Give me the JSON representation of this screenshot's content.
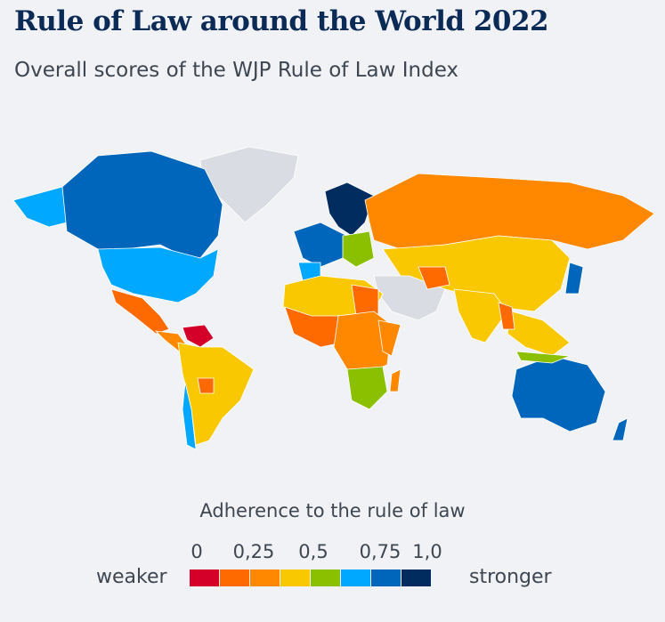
{
  "chart_data": {
    "type": "map",
    "title": "Rule of Law around the World 2022",
    "subtitle": "Overall scores of the WJP Rule of Law Index",
    "legend": {
      "title": "Adherence to the rule of law",
      "ticks": [
        "0",
        "0,25",
        "0,5",
        "0,75",
        "1,0"
      ],
      "tick_values": [
        0,
        0.25,
        0.5,
        0.75,
        1.0
      ],
      "low_label": "weaker",
      "high_label": "stronger",
      "bins": [
        0,
        0.125,
        0.25,
        0.375,
        0.5,
        0.625,
        0.75,
        0.875,
        1.0
      ],
      "colors": [
        "#d4002a",
        "#ff6a00",
        "#ff8800",
        "#f9c800",
        "#8bc000",
        "#00a8ff",
        "#0066bb",
        "#002c5f"
      ],
      "no_data_color": "#d9dde3"
    }
  }
}
